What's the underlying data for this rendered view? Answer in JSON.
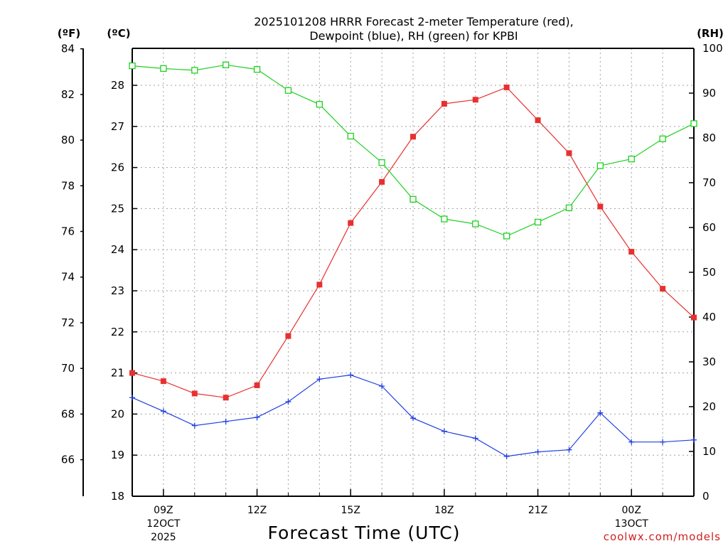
{
  "chart_data": {
    "type": "line",
    "title_line1": "2025101208 HRRR Forecast 2-meter Temperature (red),",
    "title_line2": "Dewpoint (blue), RH (green) for KPBI",
    "xlabel": "Forecast Time (UTC)",
    "credit": "coolwx.com/models",
    "unit_f": "(ºF)",
    "unit_c": "(ºC)",
    "unit_rh": "(RH)",
    "x_hours": [
      8,
      9,
      10,
      11,
      12,
      13,
      14,
      15,
      16,
      17,
      18,
      19,
      20,
      21,
      22,
      23,
      24,
      25,
      26
    ],
    "xlim": [
      8,
      26
    ],
    "x_ticks": [
      {
        "hour": 9,
        "label": "09Z",
        "sub1": "12OCT",
        "sub2": "2025"
      },
      {
        "hour": 12,
        "label": "12Z",
        "sub1": "",
        "sub2": ""
      },
      {
        "hour": 15,
        "label": "15Z",
        "sub1": "",
        "sub2": ""
      },
      {
        "hour": 18,
        "label": "18Z",
        "sub1": "",
        "sub2": ""
      },
      {
        "hour": 21,
        "label": "21Z",
        "sub1": "",
        "sub2": ""
      },
      {
        "hour": 24,
        "label": "00Z",
        "sub1": "13OCT",
        "sub2": ""
      }
    ],
    "ylim_c": [
      18,
      28.9
    ],
    "ylim_rh": [
      0,
      100
    ],
    "ylim_f": [
      64.4,
      84.02
    ],
    "y_ticks_c": [
      "18",
      "19",
      "20",
      "21",
      "22",
      "23",
      "24",
      "25",
      "26",
      "27",
      "28"
    ],
    "y_ticks_f": [
      "66",
      "68",
      "70",
      "72",
      "74",
      "76",
      "78",
      "80",
      "82",
      "84"
    ],
    "y_ticks_rh": [
      "0",
      "10",
      "20",
      "30",
      "40",
      "50",
      "60",
      "70",
      "80",
      "90",
      "100"
    ],
    "series": [
      {
        "name": "Temperature",
        "color": "#e83030",
        "axis": "c",
        "marker": "filled-square",
        "values": [
          21.0,
          20.8,
          20.5,
          20.4,
          20.7,
          21.9,
          23.15,
          24.65,
          25.65,
          26.75,
          27.55,
          27.65,
          27.95,
          27.15,
          26.35,
          25.05,
          23.95,
          23.05,
          22.35
        ]
      },
      {
        "name": "Dewpoint",
        "color": "#2040e0",
        "axis": "c",
        "marker": "plus",
        "values": [
          20.4,
          20.07,
          19.72,
          19.82,
          19.92,
          20.3,
          20.85,
          20.95,
          20.68,
          19.9,
          19.58,
          19.41,
          18.97,
          19.08,
          19.13,
          20.03,
          19.32,
          19.32,
          19.37
        ]
      },
      {
        "name": "RH",
        "color": "#20d020",
        "axis": "rh",
        "marker": "open-square",
        "values": [
          96.1,
          95.5,
          95.1,
          96.3,
          95.3,
          90.6,
          87.5,
          80.4,
          74.5,
          66.3,
          61.9,
          60.8,
          58.1,
          61.2,
          64.4,
          73.8,
          75.3,
          79.8,
          83.2
        ]
      }
    ]
  }
}
